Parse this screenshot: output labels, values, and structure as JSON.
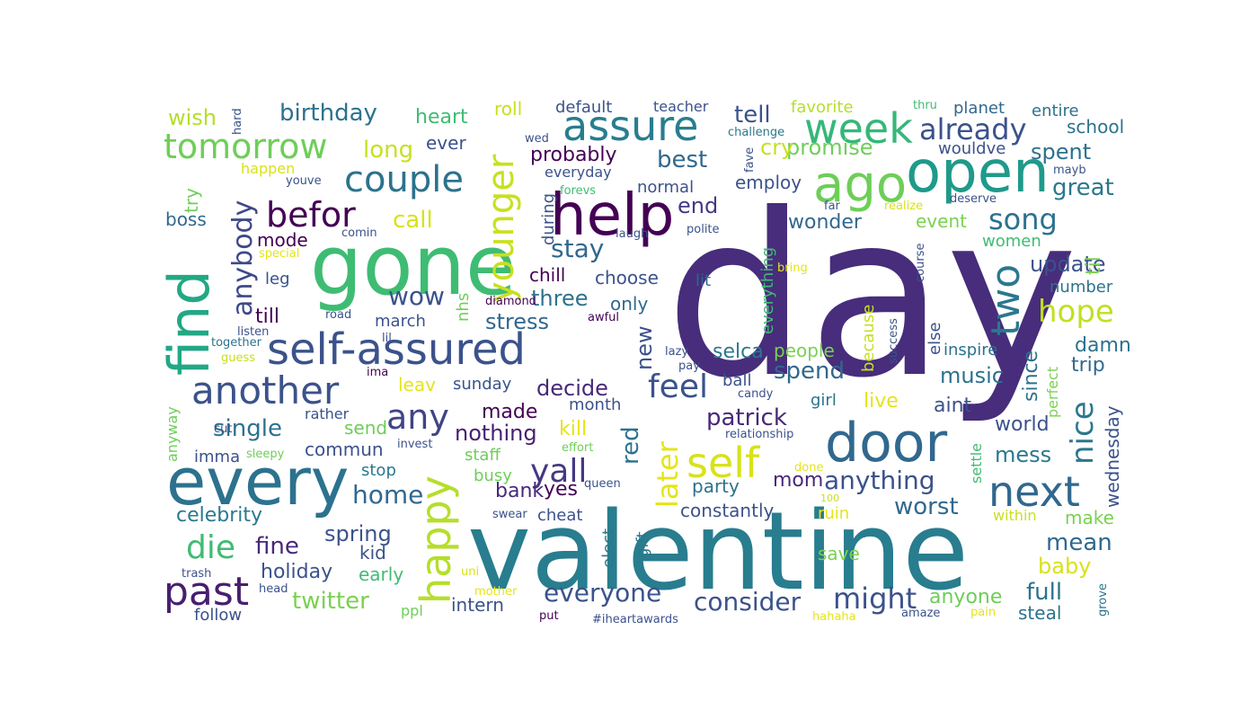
{
  "word_cloud": {
    "words": [
      {
        "text": "day",
        "color": "#472d7b"
      },
      {
        "text": "valentine",
        "color": "#287d8e"
      },
      {
        "text": "gone",
        "color": "#3fbc73"
      },
      {
        "text": "every",
        "color": "#2c728e"
      },
      {
        "text": "help",
        "color": "#440154"
      },
      {
        "text": "open",
        "color": "#1f9a8a"
      },
      {
        "text": "door",
        "color": "#31688e"
      },
      {
        "text": "ago",
        "color": "#6ece58"
      },
      {
        "text": "self-assured",
        "color": "#3b528b"
      },
      {
        "text": "find",
        "color": "#22a884"
      },
      {
        "text": "next",
        "color": "#31688e"
      },
      {
        "text": "week",
        "color": "#35b779"
      },
      {
        "text": "assure",
        "color": "#287d8e"
      },
      {
        "text": "tomorrow",
        "color": "#6ece58"
      },
      {
        "text": "another",
        "color": "#3b528b"
      },
      {
        "text": "happy",
        "color": "#b5de2b"
      },
      {
        "text": "younger",
        "color": "#c8e020"
      },
      {
        "text": "self",
        "color": "#d8e219"
      },
      {
        "text": "yall",
        "color": "#443983"
      },
      {
        "text": "couple",
        "color": "#2c728e"
      },
      {
        "text": "befor",
        "color": "#440154"
      },
      {
        "text": "past",
        "color": "#481f70"
      },
      {
        "text": "two",
        "color": "#2a788e"
      },
      {
        "text": "feel",
        "color": "#3b528b"
      },
      {
        "text": "die",
        "color": "#3fbc73"
      },
      {
        "text": "any",
        "color": "#414487"
      },
      {
        "text": "hope",
        "color": "#c2df23"
      },
      {
        "text": "nice",
        "color": "#2a788e"
      },
      {
        "text": "later",
        "color": "#e5e419"
      },
      {
        "text": "might",
        "color": "#3b528b"
      },
      {
        "text": "already",
        "color": "#3b528b"
      },
      {
        "text": "song",
        "color": "#2c728e"
      },
      {
        "text": "anybody",
        "color": "#3e4989"
      },
      {
        "text": "everyone",
        "color": "#3b528b"
      },
      {
        "text": "patrick",
        "color": "#482878"
      },
      {
        "text": "birthday",
        "color": "#2c728e"
      },
      {
        "text": "great",
        "color": "#2a788e"
      },
      {
        "text": "wow",
        "color": "#3b528b"
      },
      {
        "text": "stay",
        "color": "#31688e"
      },
      {
        "text": "anything",
        "color": "#3b528b"
      },
      {
        "text": "consider",
        "color": "#3b528b"
      },
      {
        "text": "home",
        "color": "#31688e"
      },
      {
        "text": "full",
        "color": "#2c728e"
      },
      {
        "text": "mean",
        "color": "#31688e"
      },
      {
        "text": "twitter",
        "color": "#7ad151"
      },
      {
        "text": "single",
        "color": "#2c728e"
      },
      {
        "text": "worst",
        "color": "#31688e"
      },
      {
        "text": "long",
        "color": "#c8e020"
      },
      {
        "text": "call",
        "color": "#d8e219"
      },
      {
        "text": "tell",
        "color": "#3b528b"
      },
      {
        "text": "best",
        "color": "#31688e"
      },
      {
        "text": "end",
        "color": "#443983"
      },
      {
        "text": "fine",
        "color": "#482878"
      },
      {
        "text": "spend",
        "color": "#31688e"
      },
      {
        "text": "music",
        "color": "#2c728e"
      },
      {
        "text": "mess",
        "color": "#2a788e"
      },
      {
        "text": "baby",
        "color": "#d8e219"
      },
      {
        "text": "spent",
        "color": "#2c728e"
      },
      {
        "text": "update",
        "color": "#3b528b"
      },
      {
        "text": "three",
        "color": "#2c728e"
      },
      {
        "text": "stress",
        "color": "#31688e"
      },
      {
        "text": "promise",
        "color": "#6ece58"
      },
      {
        "text": "cry",
        "color": "#c8e020"
      },
      {
        "text": "wish",
        "color": "#b5de2b"
      },
      {
        "text": "heart",
        "color": "#3fbc73"
      },
      {
        "text": "celebrity",
        "color": "#2a788e"
      },
      {
        "text": "spring",
        "color": "#3b528b"
      },
      {
        "text": "holiday",
        "color": "#3b528b"
      },
      {
        "text": "made",
        "color": "#440154"
      },
      {
        "text": "nothing",
        "color": "#481f70"
      },
      {
        "text": "decide",
        "color": "#482878"
      },
      {
        "text": "probably",
        "color": "#440154"
      },
      {
        "text": "employ",
        "color": "#3b528b"
      },
      {
        "text": "wonder",
        "color": "#31688e"
      },
      {
        "text": "event",
        "color": "#7ad151"
      },
      {
        "text": "live",
        "color": "#e5e419"
      },
      {
        "text": "aint",
        "color": "#3b528b"
      },
      {
        "text": "world",
        "color": "#3b528b"
      },
      {
        "text": "damn",
        "color": "#2c728e"
      },
      {
        "text": "trip",
        "color": "#31688e"
      },
      {
        "text": "selca",
        "color": "#2a788e"
      },
      {
        "text": "people",
        "color": "#7ad151"
      },
      {
        "text": "constantly",
        "color": "#3b528b"
      },
      {
        "text": "party",
        "color": "#2c728e"
      },
      {
        "text": "mom",
        "color": "#482878"
      },
      {
        "text": "red",
        "color": "#2c728e"
      },
      {
        "text": "new",
        "color": "#3b528b"
      },
      {
        "text": "bank",
        "color": "#482878"
      },
      {
        "text": "yes",
        "color": "#440154"
      },
      {
        "text": "send",
        "color": "#6ece58"
      },
      {
        "text": "commun",
        "color": "#3b528b"
      },
      {
        "text": "kill",
        "color": "#e5e419"
      },
      {
        "text": "staff",
        "color": "#6ece58"
      },
      {
        "text": "busy",
        "color": "#6ece58"
      },
      {
        "text": "stop",
        "color": "#2a788e"
      },
      {
        "text": "early",
        "color": "#3fbc73"
      },
      {
        "text": "kid",
        "color": "#3b528b"
      },
      {
        "text": "intern",
        "color": "#3b528b"
      },
      {
        "text": "steal",
        "color": "#2c728e"
      },
      {
        "text": "anyone",
        "color": "#6ece58"
      },
      {
        "text": "women",
        "color": "#3fbc73"
      },
      {
        "text": "school",
        "color": "#2c728e"
      },
      {
        "text": "entire",
        "color": "#2c728e"
      },
      {
        "text": "planet",
        "color": "#31688e"
      },
      {
        "text": "wouldve",
        "color": "#3b528b"
      },
      {
        "text": "number",
        "color": "#2c728e"
      },
      {
        "text": "inspire",
        "color": "#2c728e"
      },
      {
        "text": "make",
        "color": "#7ad151"
      },
      {
        "text": "within",
        "color": "#c8e020"
      },
      {
        "text": "save",
        "color": "#7ad151"
      },
      {
        "text": "ruin",
        "color": "#e5e419"
      },
      {
        "text": "girl",
        "color": "#2c728e"
      },
      {
        "text": "ball",
        "color": "#3b528b"
      },
      {
        "text": "leav",
        "color": "#e5e419"
      },
      {
        "text": "sunday",
        "color": "#3b528b"
      },
      {
        "text": "month",
        "color": "#3b528b"
      },
      {
        "text": "chill",
        "color": "#440154"
      },
      {
        "text": "choose",
        "color": "#3b528b"
      },
      {
        "text": "only",
        "color": "#31688e"
      },
      {
        "text": "march",
        "color": "#3b528b"
      },
      {
        "text": "till",
        "color": "#440154"
      },
      {
        "text": "leg",
        "color": "#3b528b"
      },
      {
        "text": "mode",
        "color": "#440154"
      },
      {
        "text": "boss",
        "color": "#31688e"
      },
      {
        "text": "imma",
        "color": "#3b528b"
      },
      {
        "text": "rather",
        "color": "#3b528b"
      },
      {
        "text": "follow",
        "color": "#3b528b"
      },
      {
        "text": "ppl",
        "color": "#6ece58"
      },
      {
        "text": "happen",
        "color": "#d8e219"
      },
      {
        "text": "ever",
        "color": "#3b528b"
      },
      {
        "text": "roll",
        "color": "#c8e020"
      },
      {
        "text": "default",
        "color": "#3b528b"
      },
      {
        "text": "teacher",
        "color": "#3b528b"
      },
      {
        "text": "favorite",
        "color": "#b5de2b"
      },
      {
        "text": "everyday",
        "color": "#3b528b"
      },
      {
        "text": "normal",
        "color": "#3b528b"
      },
      {
        "text": "lit",
        "color": "#31688e"
      },
      {
        "text": "cheat",
        "color": "#3b528b"
      },
      {
        "text": "queen",
        "color": "#3b528b"
      },
      {
        "text": "#iheartawards",
        "color": "#3b528b"
      },
      {
        "text": "put",
        "color": "#440154"
      },
      {
        "text": "amaze",
        "color": "#3b528b"
      },
      {
        "text": "pain",
        "color": "#e5e419"
      },
      {
        "text": "hahaha",
        "color": "#e5e419"
      },
      {
        "text": "mother",
        "color": "#e5e419"
      },
      {
        "text": "uni",
        "color": "#d8e219"
      },
      {
        "text": "head",
        "color": "#3b528b"
      },
      {
        "text": "trash",
        "color": "#3b528b"
      },
      {
        "text": "swear",
        "color": "#3b528b"
      },
      {
        "text": "100",
        "color": "#c8e020"
      },
      {
        "text": "done",
        "color": "#e5e419"
      },
      {
        "text": "invest",
        "color": "#3b528b"
      },
      {
        "text": "effort",
        "color": "#6ece58"
      },
      {
        "text": "relationship",
        "color": "#3b528b"
      },
      {
        "text": "cut",
        "color": "#3b528b"
      },
      {
        "text": "sleepy",
        "color": "#6ece58"
      },
      {
        "text": "candy",
        "color": "#3b528b"
      },
      {
        "text": "pay",
        "color": "#3b528b"
      },
      {
        "text": "lazy",
        "color": "#3b528b"
      },
      {
        "text": "ima",
        "color": "#440154"
      },
      {
        "text": "guess",
        "color": "#c8e020"
      },
      {
        "text": "lil",
        "color": "#3b528b"
      },
      {
        "text": "together",
        "color": "#2c728e"
      },
      {
        "text": "listen",
        "color": "#3b528b"
      },
      {
        "text": "road",
        "color": "#3b528b"
      },
      {
        "text": "special",
        "color": "#e5e419"
      },
      {
        "text": "comin",
        "color": "#3b528b"
      },
      {
        "text": "youve",
        "color": "#3b528b"
      },
      {
        "text": "diamond",
        "color": "#440154"
      },
      {
        "text": "awful",
        "color": "#440154"
      },
      {
        "text": "laugh",
        "color": "#3b528b"
      },
      {
        "text": "polite",
        "color": "#3b528b"
      },
      {
        "text": "bring",
        "color": "#e5e419"
      },
      {
        "text": "forevs",
        "color": "#3fbc73"
      },
      {
        "text": "wed",
        "color": "#3b528b"
      },
      {
        "text": "challenge",
        "color": "#2a788e"
      },
      {
        "text": "far",
        "color": "#3b528b"
      },
      {
        "text": "realize",
        "color": "#d8e219"
      },
      {
        "text": "deserve",
        "color": "#3b528b"
      },
      {
        "text": "mayb",
        "color": "#3b528b"
      },
      {
        "text": "thru",
        "color": "#3fbc73"
      },
      {
        "text": "hard",
        "color": "#3b528b"
      },
      {
        "text": "try",
        "color": "#6ece58"
      },
      {
        "text": "everything",
        "color": "#3fbc73"
      },
      {
        "text": "during",
        "color": "#3b528b"
      },
      {
        "text": "nhs",
        "color": "#6ece58"
      },
      {
        "text": "because",
        "color": "#c8e020"
      },
      {
        "text": "since",
        "color": "#2c728e"
      },
      {
        "text": "else",
        "color": "#3b528b"
      },
      {
        "text": "til",
        "color": "#7ad151"
      },
      {
        "text": "perfect",
        "color": "#7ad151"
      },
      {
        "text": "wednesday",
        "color": "#3b528b"
      },
      {
        "text": "settle",
        "color": "#3fbc73"
      },
      {
        "text": "success",
        "color": "#3b528b"
      },
      {
        "text": "course",
        "color": "#3b528b"
      },
      {
        "text": "fave",
        "color": "#3b528b"
      },
      {
        "text": "anyway",
        "color": "#6ece58"
      },
      {
        "text": "elect",
        "color": "#2a788e"
      },
      {
        "text": "gift",
        "color": "#2a788e"
      },
      {
        "text": "grove",
        "color": "#2c728e"
      }
    ]
  }
}
